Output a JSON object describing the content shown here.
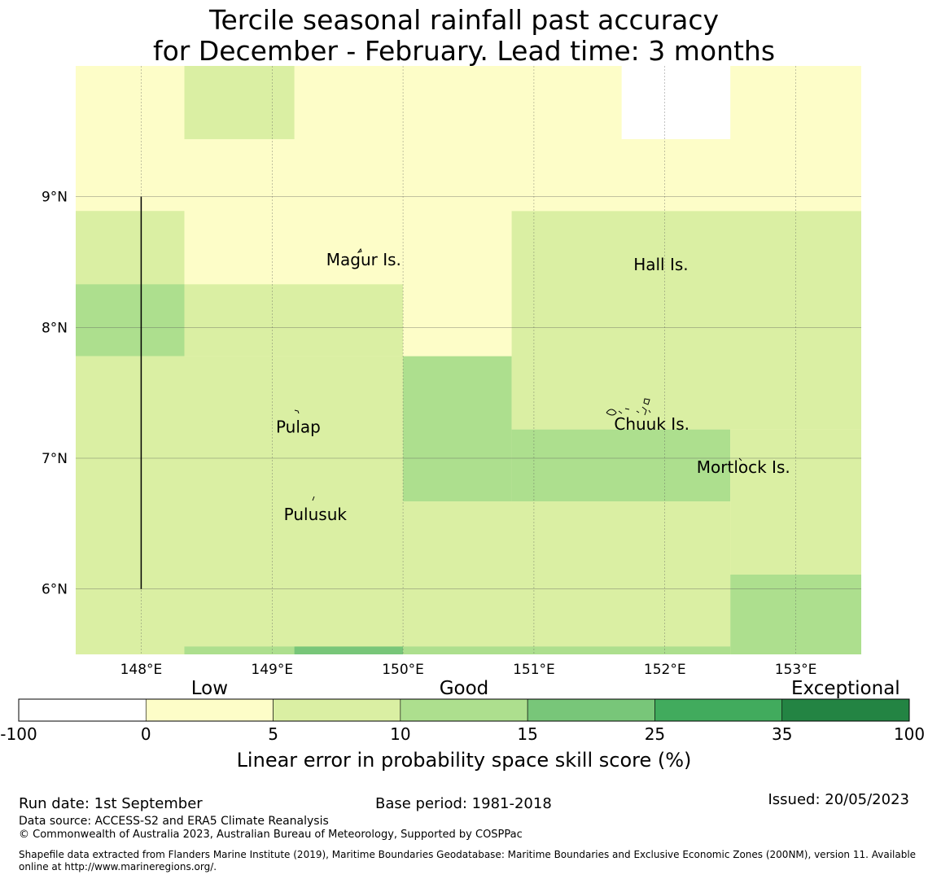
{
  "title": {
    "line1": "Tercile seasonal rainfall past accuracy",
    "line2": "for December - February. Lead time: 3 months"
  },
  "map": {
    "lon_range": [
      147.5,
      153.5
    ],
    "lat_range": [
      5.5,
      10.0
    ],
    "lon_ticks": [
      {
        "value": 148,
        "label": "148°E"
      },
      {
        "value": 149,
        "label": "149°E"
      },
      {
        "value": 150,
        "label": "150°E"
      },
      {
        "value": 151,
        "label": "151°E"
      },
      {
        "value": 152,
        "label": "152°E"
      },
      {
        "value": 153,
        "label": "153°E"
      }
    ],
    "lat_ticks": [
      {
        "value": 6,
        "label": "6°N"
      },
      {
        "value": 7,
        "label": "7°N"
      },
      {
        "value": 8,
        "label": "8°N"
      },
      {
        "value": 9,
        "label": "9°N"
      }
    ],
    "grid": true,
    "cells": [
      {
        "lon": [
          147.5,
          153.5
        ],
        "lat": [
          5.5,
          10.0
        ],
        "cls": 1
      },
      {
        "lon": [
          148.33,
          149.17
        ],
        "lat": [
          9.44,
          10.0
        ],
        "cls": 2
      },
      {
        "lon": [
          151.67,
          152.5
        ],
        "lat": [
          9.44,
          10.0
        ],
        "cls": 0
      },
      {
        "lon": [
          147.5,
          148.33
        ],
        "lat": [
          7.78,
          8.89
        ],
        "cls": 2
      },
      {
        "lon": [
          147.5,
          148.33
        ],
        "lat": [
          8.33,
          8.89
        ],
        "cls": 2
      },
      {
        "lon": [
          147.5,
          148.33
        ],
        "lat": [
          7.78,
          8.33
        ],
        "cls": 3
      },
      {
        "lon": [
          147.5,
          150.0
        ],
        "lat": [
          5.5,
          7.78
        ],
        "cls": 2
      },
      {
        "lon": [
          148.33,
          150.0
        ],
        "lat": [
          7.78,
          8.33
        ],
        "cls": 2
      },
      {
        "lon": [
          150.0,
          150.83
        ],
        "lat": [
          6.67,
          7.78
        ],
        "cls": 3
      },
      {
        "lon": [
          150.83,
          153.5
        ],
        "lat": [
          7.22,
          8.89
        ],
        "cls": 2
      },
      {
        "lon": [
          150.83,
          152.5
        ],
        "lat": [
          6.67,
          7.22
        ],
        "cls": 3
      },
      {
        "lon": [
          152.5,
          153.5
        ],
        "lat": [
          6.11,
          7.22
        ],
        "cls": 2
      },
      {
        "lon": [
          150.0,
          152.5
        ],
        "lat": [
          5.5,
          6.67
        ],
        "cls": 2
      },
      {
        "lon": [
          152.5,
          153.5
        ],
        "lat": [
          5.5,
          6.11
        ],
        "cls": 3
      },
      {
        "lon": [
          148.33,
          149.17
        ],
        "lat": [
          5.5,
          5.56
        ],
        "cls": 3
      },
      {
        "lon": [
          149.17,
          150.0
        ],
        "lat": [
          5.5,
          5.56
        ],
        "cls": 4
      },
      {
        "lon": [
          150.0,
          152.5
        ],
        "lat": [
          5.5,
          5.56
        ],
        "cls": 3
      }
    ],
    "boundary_line": {
      "lon": 148.0,
      "lat": [
        6.0,
        9.0
      ]
    },
    "places": [
      {
        "name": "Magur Is.",
        "lon": 149.7,
        "lat": 8.52
      },
      {
        "name": "Hall Is.",
        "lon": 151.97,
        "lat": 8.48
      },
      {
        "name": "Pulap",
        "lon": 149.2,
        "lat": 7.24
      },
      {
        "name": "Chuuk Is.",
        "lon": 151.9,
        "lat": 7.26
      },
      {
        "name": "Mortlock Is.",
        "lon": 152.6,
        "lat": 6.93
      },
      {
        "name": "Pulusuk",
        "lon": 149.33,
        "lat": 6.57
      }
    ]
  },
  "legend": {
    "category_labels": [
      "Low",
      "Good",
      "Exceptional"
    ],
    "colors": [
      "#ffffff",
      "#fdfdc8",
      "#daefa3",
      "#addf8e",
      "#78c679",
      "#41ab5d",
      "#238443"
    ],
    "ticks": [
      "-100",
      "0",
      "5",
      "10",
      "15",
      "25",
      "35",
      "100"
    ],
    "label": "Linear error in probability space skill score (%)"
  },
  "footer": {
    "run_date": "Run date: 1st September",
    "base_period": "Base period: 1981-2018",
    "issued": "Issued: 20/05/2023",
    "data_source": "Data source: ACCESS-S2 and ERA5 Climate Reanalysis",
    "copyright": "© Commonwealth of Australia 2023, Australian Bureau of Meteorology, Supported by COSPPac",
    "shapefile": "Shapefile data extracted from Flanders Marine Institute (2019), Maritime Boundaries Geodatabase: Maritime Boundaries and Exclusive Economic Zones (200NM), version 11. Available online at http://www.marineregions.org/."
  }
}
